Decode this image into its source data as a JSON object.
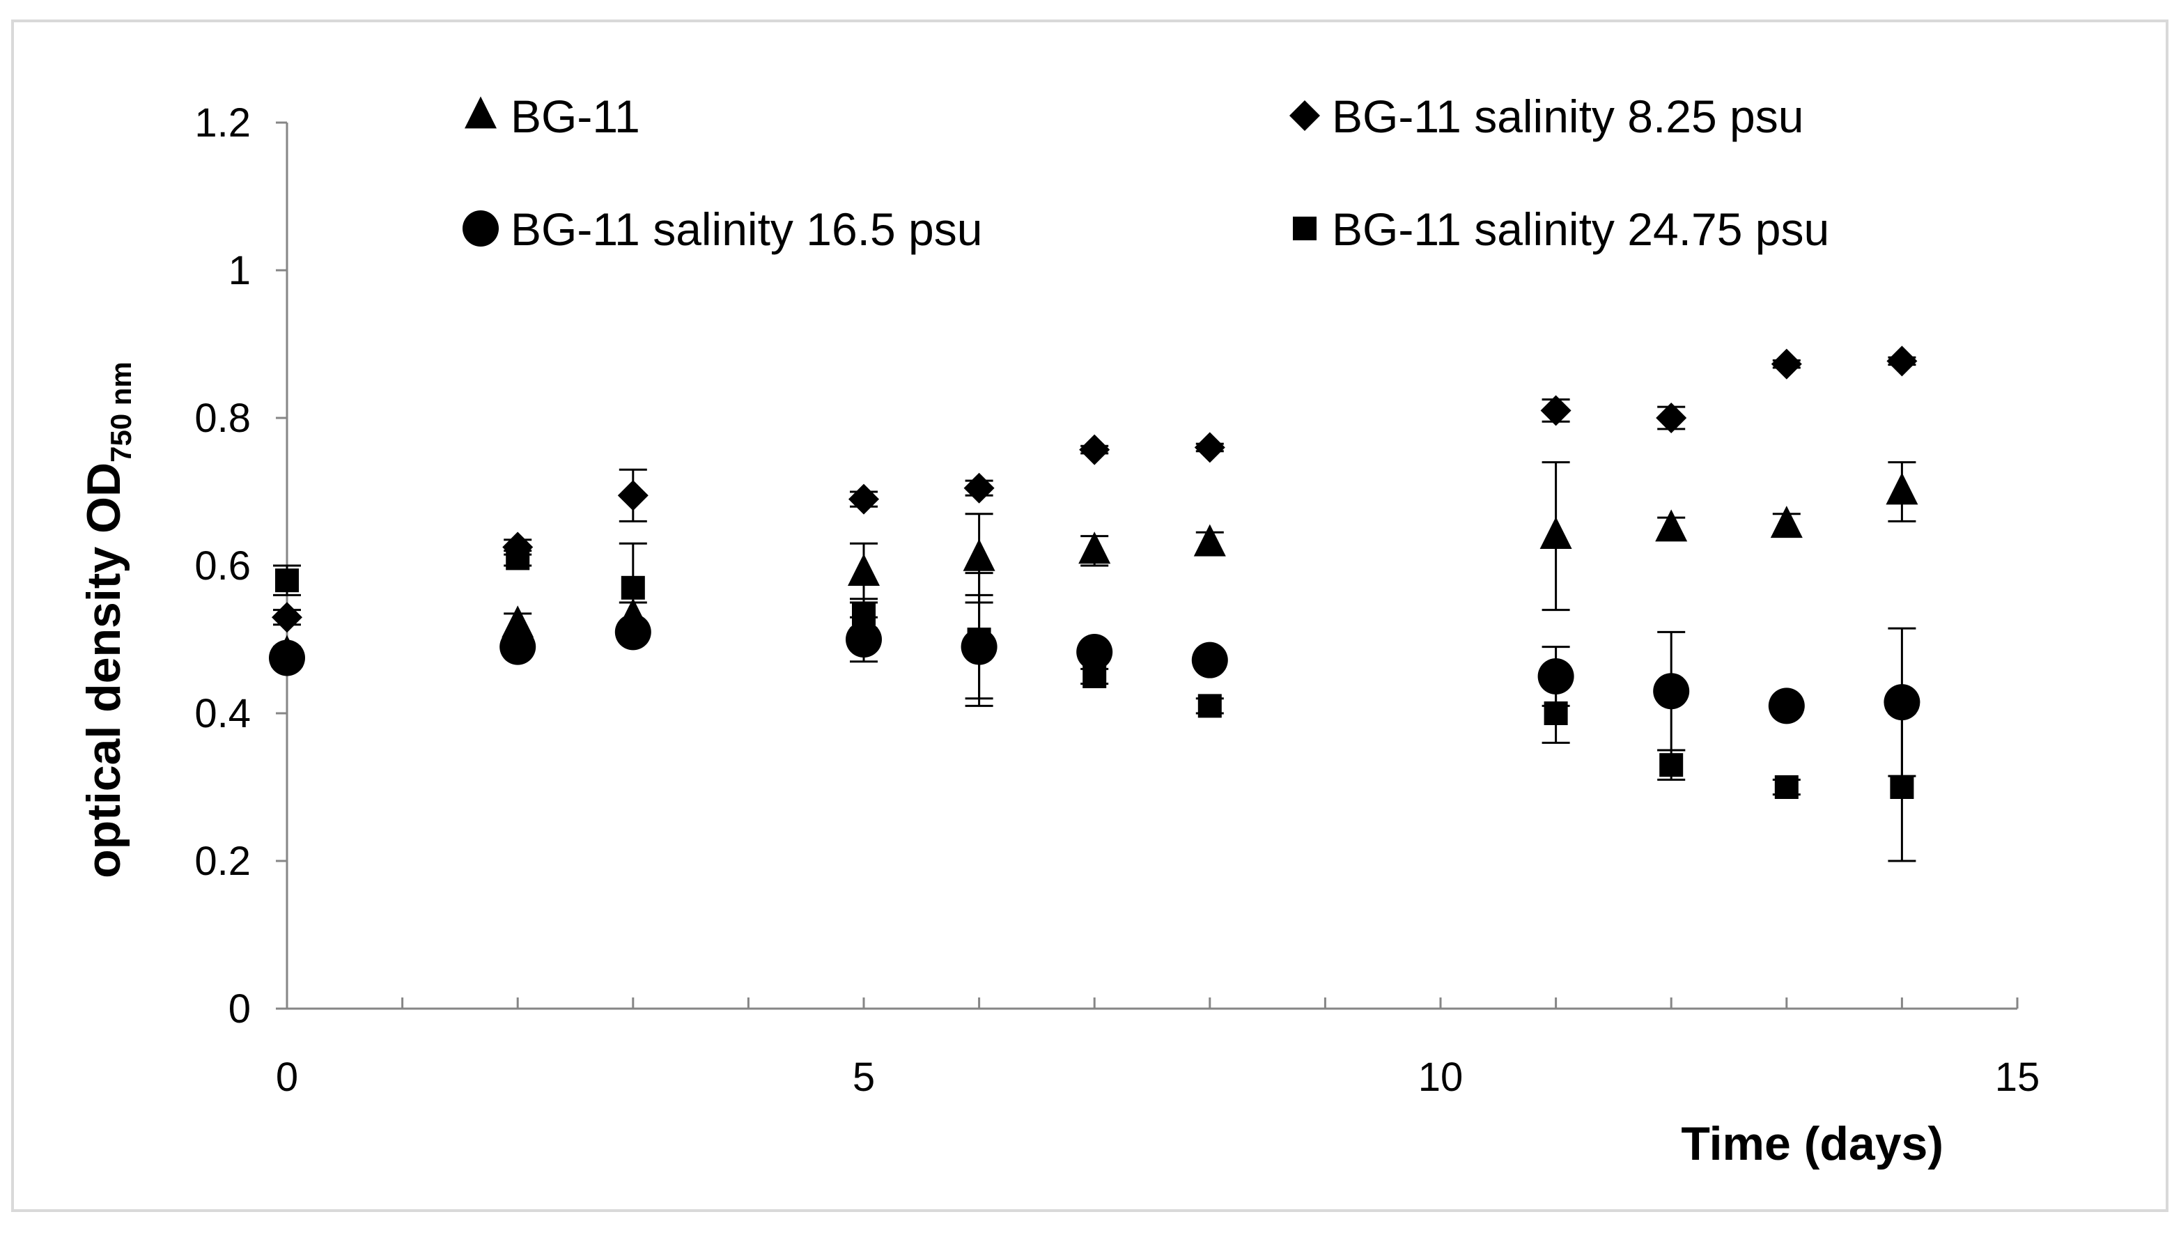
{
  "chart_data": {
    "type": "scatter",
    "title": "",
    "xlabel": "Time (days)",
    "ylabel": "optical density OD",
    "ylabel_subscript": "750 nm",
    "xlim": [
      0,
      15
    ],
    "ylim": [
      0,
      1.2
    ],
    "xticks": [
      "0",
      "5",
      "10",
      "15"
    ],
    "yticks": [
      "0",
      "0.2",
      "0.4",
      "0.6",
      "0.8",
      "1",
      "1.2"
    ],
    "grid": false,
    "legend_position": "top",
    "series": [
      {
        "name": "BG-11",
        "marker": "triangle",
        "x": [
          0,
          2,
          3,
          5,
          6,
          7,
          8,
          11,
          12,
          13,
          14
        ],
        "y": [
          0.48,
          0.52,
          0.53,
          0.59,
          0.61,
          0.62,
          0.63,
          0.64,
          0.65,
          0.655,
          0.7
        ],
        "err": [
          0.01,
          0.015,
          0.02,
          0.04,
          0.06,
          0.02,
          0.015,
          0.1,
          0.015,
          0.015,
          0.04
        ]
      },
      {
        "name": "BG-11 salinity 8.25 psu",
        "marker": "diamond",
        "x": [
          0,
          2,
          3,
          5,
          6,
          7,
          8,
          11,
          12,
          13,
          14
        ],
        "y": [
          0.53,
          0.625,
          0.695,
          0.69,
          0.705,
          0.757,
          0.76,
          0.81,
          0.8,
          0.873,
          0.877
        ],
        "err": [
          0.01,
          0.01,
          0.035,
          0.01,
          0.01,
          0.005,
          0.005,
          0.015,
          0.015,
          0.005,
          0.005
        ]
      },
      {
        "name": "BG-11 salinity 16.5 psu",
        "marker": "circle",
        "x": [
          0,
          2,
          3,
          5,
          6,
          7,
          8,
          11,
          12,
          13,
          14
        ],
        "y": [
          0.475,
          0.49,
          0.51,
          0.5,
          0.49,
          0.483,
          0.472,
          0.45,
          0.43,
          0.41,
          0.415
        ],
        "err": [
          0.01,
          0.01,
          0.01,
          0.03,
          0.07,
          0.01,
          0.01,
          0.04,
          0.08,
          0.01,
          0.1
        ]
      },
      {
        "name": "BG-11 salinity 24.75 psu",
        "marker": "square",
        "x": [
          0,
          2,
          3,
          5,
          6,
          7,
          8,
          11,
          12,
          13,
          14
        ],
        "y": [
          0.58,
          0.61,
          0.57,
          0.535,
          0.5,
          0.45,
          0.41,
          0.4,
          0.33,
          0.3,
          0.3
        ],
        "err": [
          0.02,
          0.01,
          0.06,
          0.02,
          0.09,
          0.01,
          0.01,
          0.04,
          0.02,
          0.01,
          0.1
        ]
      }
    ]
  }
}
